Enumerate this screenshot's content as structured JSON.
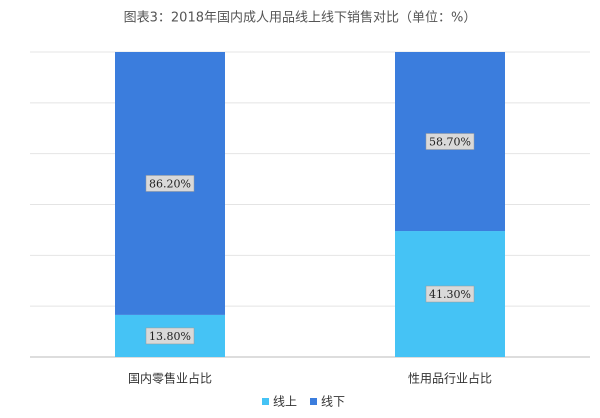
{
  "chart_data": {
    "type": "stacked_bar",
    "title": "图表3：2018年国内成人用品线上线下销售对比（单位：%）",
    "categories": [
      "国内零售业占比",
      "性用品行业占比"
    ],
    "series": [
      {
        "name": "线上",
        "color": "#45c3f5",
        "values": [
          13.8,
          41.3
        ],
        "value_labels": [
          "13.80%",
          "41.30%"
        ]
      },
      {
        "name": "线下",
        "color": "#3b7ddd",
        "values": [
          86.2,
          58.7
        ],
        "value_labels": [
          "86.20%",
          "58.70%"
        ]
      }
    ],
    "ylim": [
      0,
      100
    ],
    "grid": true,
    "legend": "bottom"
  }
}
